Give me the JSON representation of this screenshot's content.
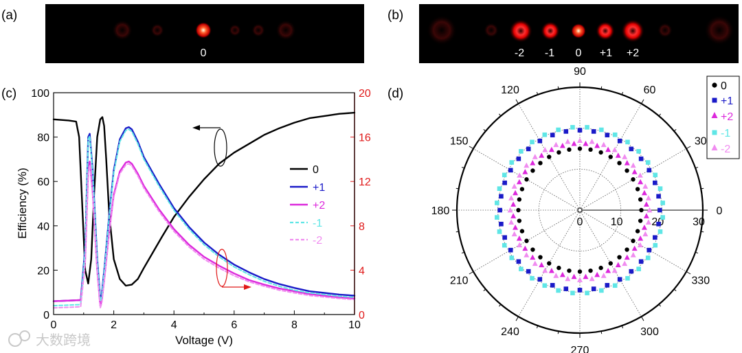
{
  "panel_labels": {
    "a": "(a)",
    "b": "(b)",
    "c": "(c)",
    "d": "(d)"
  },
  "beam_images": {
    "a": {
      "labels": [
        "0"
      ]
    },
    "b": {
      "labels": [
        "-2",
        "-1",
        "0",
        "+1",
        "+2"
      ]
    }
  },
  "watermark": "大数跨境",
  "colors": {
    "order_0": "#000000",
    "order_p1": "#1a1ac8",
    "order_p2": "#dc28dc",
    "order_m1": "#5fe6e6",
    "order_m2": "#f08cf0",
    "right_axis": "#e01818",
    "beam": "#ff2020"
  },
  "chart_data": [
    {
      "type": "line",
      "title": "",
      "xlabel": "Voltage (V)",
      "ylabel": "Efficiency (%)",
      "xlim": [
        0,
        10
      ],
      "ylim": [
        0,
        100
      ],
      "y2lim": [
        0,
        20
      ],
      "xticks": [
        "0",
        "2",
        "4",
        "6",
        "8",
        "10"
      ],
      "yticks": [
        "0",
        "20",
        "40",
        "60",
        "80",
        "100"
      ],
      "y2ticks": [
        "0",
        "4",
        "8",
        "12",
        "16",
        "20"
      ],
      "legend_position": "right",
      "series": [
        {
          "name": "0",
          "axis": "left",
          "style": "solid",
          "x": [
            0,
            0.5,
            0.75,
            0.85,
            0.95,
            1.05,
            1.15,
            1.25,
            1.35,
            1.45,
            1.55,
            1.62,
            1.68,
            1.75,
            1.85,
            2.0,
            2.2,
            2.4,
            2.6,
            2.8,
            3.0,
            3.3,
            3.6,
            4.0,
            4.5,
            5.0,
            5.5,
            6.0,
            6.5,
            7.0,
            7.5,
            8.0,
            8.5,
            9.0,
            9.5,
            10.0
          ],
          "y": [
            88,
            87.5,
            87,
            80,
            50,
            20,
            14,
            25,
            55,
            80,
            88,
            89,
            85,
            70,
            45,
            25,
            16,
            13,
            13.5,
            16,
            21,
            28,
            35,
            44,
            53,
            61,
            68,
            73,
            77,
            81,
            84,
            86.5,
            88.5,
            89.5,
            90.5,
            91
          ]
        },
        {
          "name": "+1",
          "axis": "right",
          "style": "solid",
          "x": [
            0,
            0.9,
            1.05,
            1.15,
            1.2,
            1.3,
            1.45,
            1.55,
            1.6,
            1.7,
            1.85,
            2.0,
            2.2,
            2.4,
            2.5,
            2.6,
            2.8,
            3.0,
            3.5,
            4.0,
            4.5,
            5.0,
            5.5,
            6.0,
            6.5,
            7.0,
            7.5,
            8.0,
            8.5,
            9.0,
            9.5,
            10.0
          ],
          "y": [
            1.2,
            1.3,
            6,
            16,
            16.3,
            13,
            5,
            1.4,
            1.8,
            4.5,
            9,
            13,
            15.8,
            16.8,
            16.9,
            16.7,
            15.6,
            14.2,
            11.8,
            9.6,
            7.9,
            6.5,
            5.4,
            4.5,
            3.8,
            3.2,
            2.75,
            2.4,
            2.1,
            1.95,
            1.8,
            1.7
          ]
        },
        {
          "name": "+2",
          "axis": "right",
          "style": "solid",
          "x": [
            0,
            0.9,
            1.05,
            1.15,
            1.2,
            1.3,
            1.45,
            1.55,
            1.6,
            1.7,
            1.85,
            2.0,
            2.2,
            2.4,
            2.5,
            2.6,
            2.8,
            3.0,
            3.5,
            4.0,
            4.5,
            5.0,
            5.5,
            6.0,
            6.5,
            7.0,
            7.5,
            8.0,
            8.5,
            9.0,
            9.5,
            10.0
          ],
          "y": [
            1.2,
            1.3,
            5,
            13,
            13.8,
            11,
            4,
            0.8,
            1.2,
            3.6,
            7.5,
            10.8,
            12.9,
            13.7,
            13.8,
            13.6,
            12.7,
            11.6,
            9.5,
            7.7,
            6.3,
            5.2,
            4.4,
            3.7,
            3.1,
            2.7,
            2.35,
            2.1,
            1.85,
            1.7,
            1.55,
            1.45
          ]
        },
        {
          "name": "-1",
          "axis": "right",
          "style": "dashed",
          "x": [
            0,
            0.9,
            1.05,
            1.15,
            1.2,
            1.3,
            1.45,
            1.55,
            1.6,
            1.7,
            1.85,
            2.0,
            2.2,
            2.4,
            2.5,
            2.6,
            2.8,
            3.0,
            3.5,
            4.0,
            4.5,
            5.0,
            5.5,
            6.0,
            6.5,
            7.0,
            7.5,
            8.0,
            8.5,
            9.0,
            9.5,
            10.0
          ],
          "y": [
            0.8,
            0.9,
            5.8,
            15.8,
            16.1,
            12.8,
            4.8,
            1.2,
            1.6,
            4.3,
            8.8,
            12.8,
            15.6,
            16.6,
            16.7,
            16.5,
            15.4,
            14.0,
            11.6,
            9.4,
            7.7,
            6.3,
            5.2,
            4.3,
            3.6,
            3.0,
            2.55,
            2.2,
            1.95,
            1.8,
            1.65,
            1.55
          ]
        },
        {
          "name": "-2",
          "axis": "right",
          "style": "dashed",
          "x": [
            0,
            0.9,
            1.05,
            1.15,
            1.2,
            1.3,
            1.45,
            1.55,
            1.6,
            1.7,
            1.85,
            2.0,
            2.2,
            2.4,
            2.5,
            2.6,
            2.8,
            3.0,
            3.5,
            4.0,
            4.5,
            5.0,
            5.5,
            6.0,
            6.5,
            7.0,
            7.5,
            8.0,
            8.5,
            9.0,
            9.5,
            10.0
          ],
          "y": [
            0.6,
            0.7,
            4.6,
            12.7,
            13.5,
            10.8,
            3.8,
            0.6,
            1.0,
            3.4,
            7.3,
            10.6,
            12.7,
            13.5,
            13.6,
            13.4,
            12.5,
            11.4,
            9.3,
            7.5,
            6.1,
            5.0,
            4.2,
            3.5,
            2.95,
            2.55,
            2.2,
            1.95,
            1.72,
            1.58,
            1.45,
            1.35
          ]
        }
      ]
    },
    {
      "type": "scatter",
      "subtype": "polar",
      "title": "",
      "angle_ticks": [
        "0",
        "30",
        "60",
        "90",
        "120",
        "150",
        "180",
        "210",
        "240",
        "270",
        "300",
        "330"
      ],
      "radial_ticks": [
        "0",
        "10",
        "20",
        "30"
      ],
      "rlim": [
        0,
        30
      ],
      "legend_position": "top-right",
      "series": [
        {
          "name": "0",
          "marker": "circle",
          "r": 15,
          "angles": [
            0,
            10,
            20,
            30,
            40,
            50,
            60,
            70,
            80,
            90,
            100,
            110,
            120,
            130,
            140,
            150,
            160,
            170,
            180,
            190,
            200,
            210,
            220,
            230,
            240,
            250,
            260,
            270,
            280,
            290,
            300,
            310,
            320,
            330,
            340,
            350
          ]
        },
        {
          "name": "+1",
          "marker": "square",
          "r": 19.5,
          "angles": [
            0,
            10,
            20,
            30,
            40,
            50,
            60,
            70,
            80,
            90,
            100,
            110,
            120,
            130,
            140,
            150,
            160,
            170,
            180,
            190,
            200,
            210,
            220,
            230,
            240,
            250,
            260,
            270,
            280,
            290,
            300,
            310,
            320,
            330,
            340,
            350
          ]
        },
        {
          "name": "+2",
          "marker": "triangle-up",
          "r": 16.3,
          "angles": [
            5,
            15,
            25,
            35,
            45,
            55,
            65,
            75,
            85,
            95,
            105,
            115,
            125,
            135,
            145,
            155,
            165,
            175,
            185,
            195,
            205,
            215,
            225,
            235,
            245,
            255,
            265,
            275,
            285,
            295,
            305,
            315,
            325,
            335,
            345,
            355
          ]
        },
        {
          "name": "-1",
          "marker": "square",
          "r": 20.3,
          "angles": [
            5,
            15,
            25,
            35,
            45,
            55,
            65,
            75,
            85,
            95,
            105,
            115,
            125,
            135,
            145,
            155,
            165,
            175,
            185,
            195,
            205,
            215,
            225,
            235,
            245,
            255,
            265,
            275,
            285,
            295,
            305,
            315,
            325,
            335,
            345,
            355
          ]
        },
        {
          "name": "-2",
          "marker": "triangle-up",
          "r": 17.0,
          "angles": [
            0,
            10,
            20,
            30,
            40,
            50,
            60,
            70,
            80,
            90,
            100,
            110,
            120,
            130,
            140,
            150,
            160,
            170,
            180,
            190,
            200,
            210,
            220,
            230,
            240,
            250,
            260,
            270,
            280,
            290,
            300,
            310,
            320,
            330,
            340,
            350
          ]
        }
      ]
    }
  ]
}
